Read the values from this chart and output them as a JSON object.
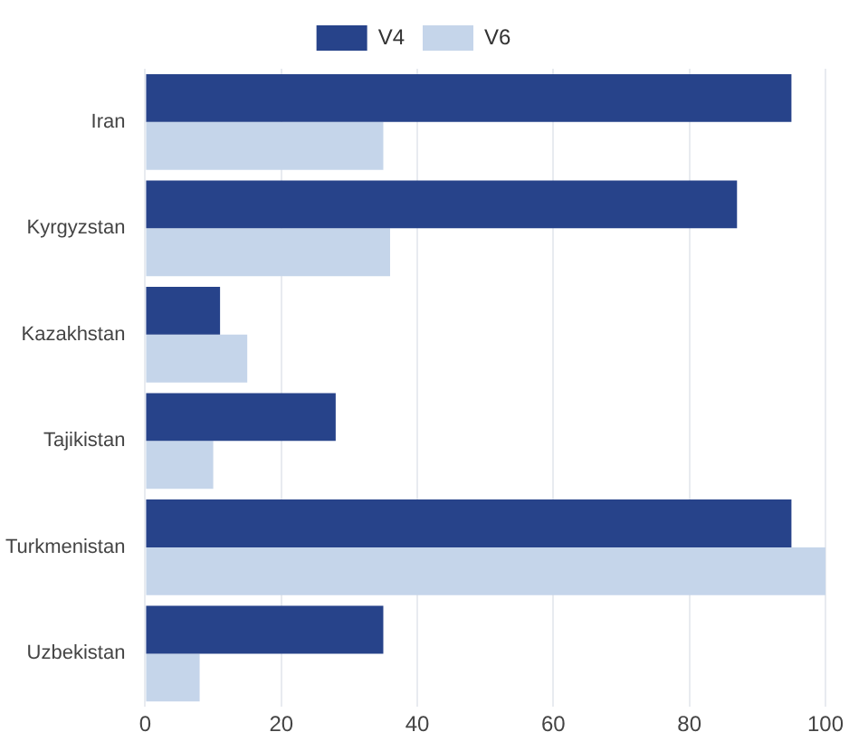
{
  "chart_data": {
    "type": "bar",
    "orientation": "horizontal",
    "categories": [
      "Iran",
      "Kyrgyzstan",
      "Kazakhstan",
      "Tajikistan",
      "Turkmenistan",
      "Uzbekistan"
    ],
    "series": [
      {
        "name": "V4",
        "color": "#27438a",
        "values": [
          95,
          87,
          11,
          28,
          95,
          35
        ]
      },
      {
        "name": "V6",
        "color": "#c5d5ea",
        "values": [
          35,
          36,
          15,
          10,
          100,
          8
        ]
      }
    ],
    "xlim": [
      0,
      100
    ],
    "xticks": [
      0,
      20,
      40,
      60,
      80,
      100
    ],
    "grid": "x",
    "legend": "top"
  }
}
